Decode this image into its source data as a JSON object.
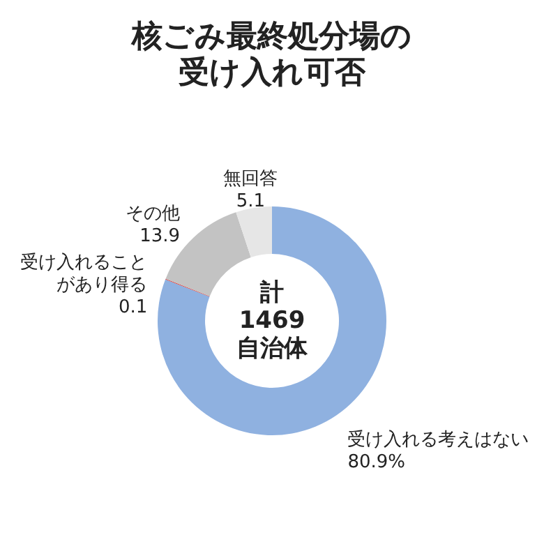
{
  "chart_data": {
    "type": "donut",
    "title": "核ごみ最終処分場の受け入れ可否",
    "categories": [
      "受け入れる考えはない",
      "受け入れることがあり得る",
      "その他",
      "無回答"
    ],
    "values": [
      80.9,
      0.1,
      13.9,
      5.1
    ],
    "colors": [
      "#8fb1e0",
      "#e0302a",
      "#c3c3c3",
      "#e6e6e6"
    ],
    "value_labels": [
      "80.9%",
      "0.1",
      "13.9",
      "5.1"
    ],
    "annotations": [
      "計",
      "1469",
      "自治体"
    ]
  }
}
